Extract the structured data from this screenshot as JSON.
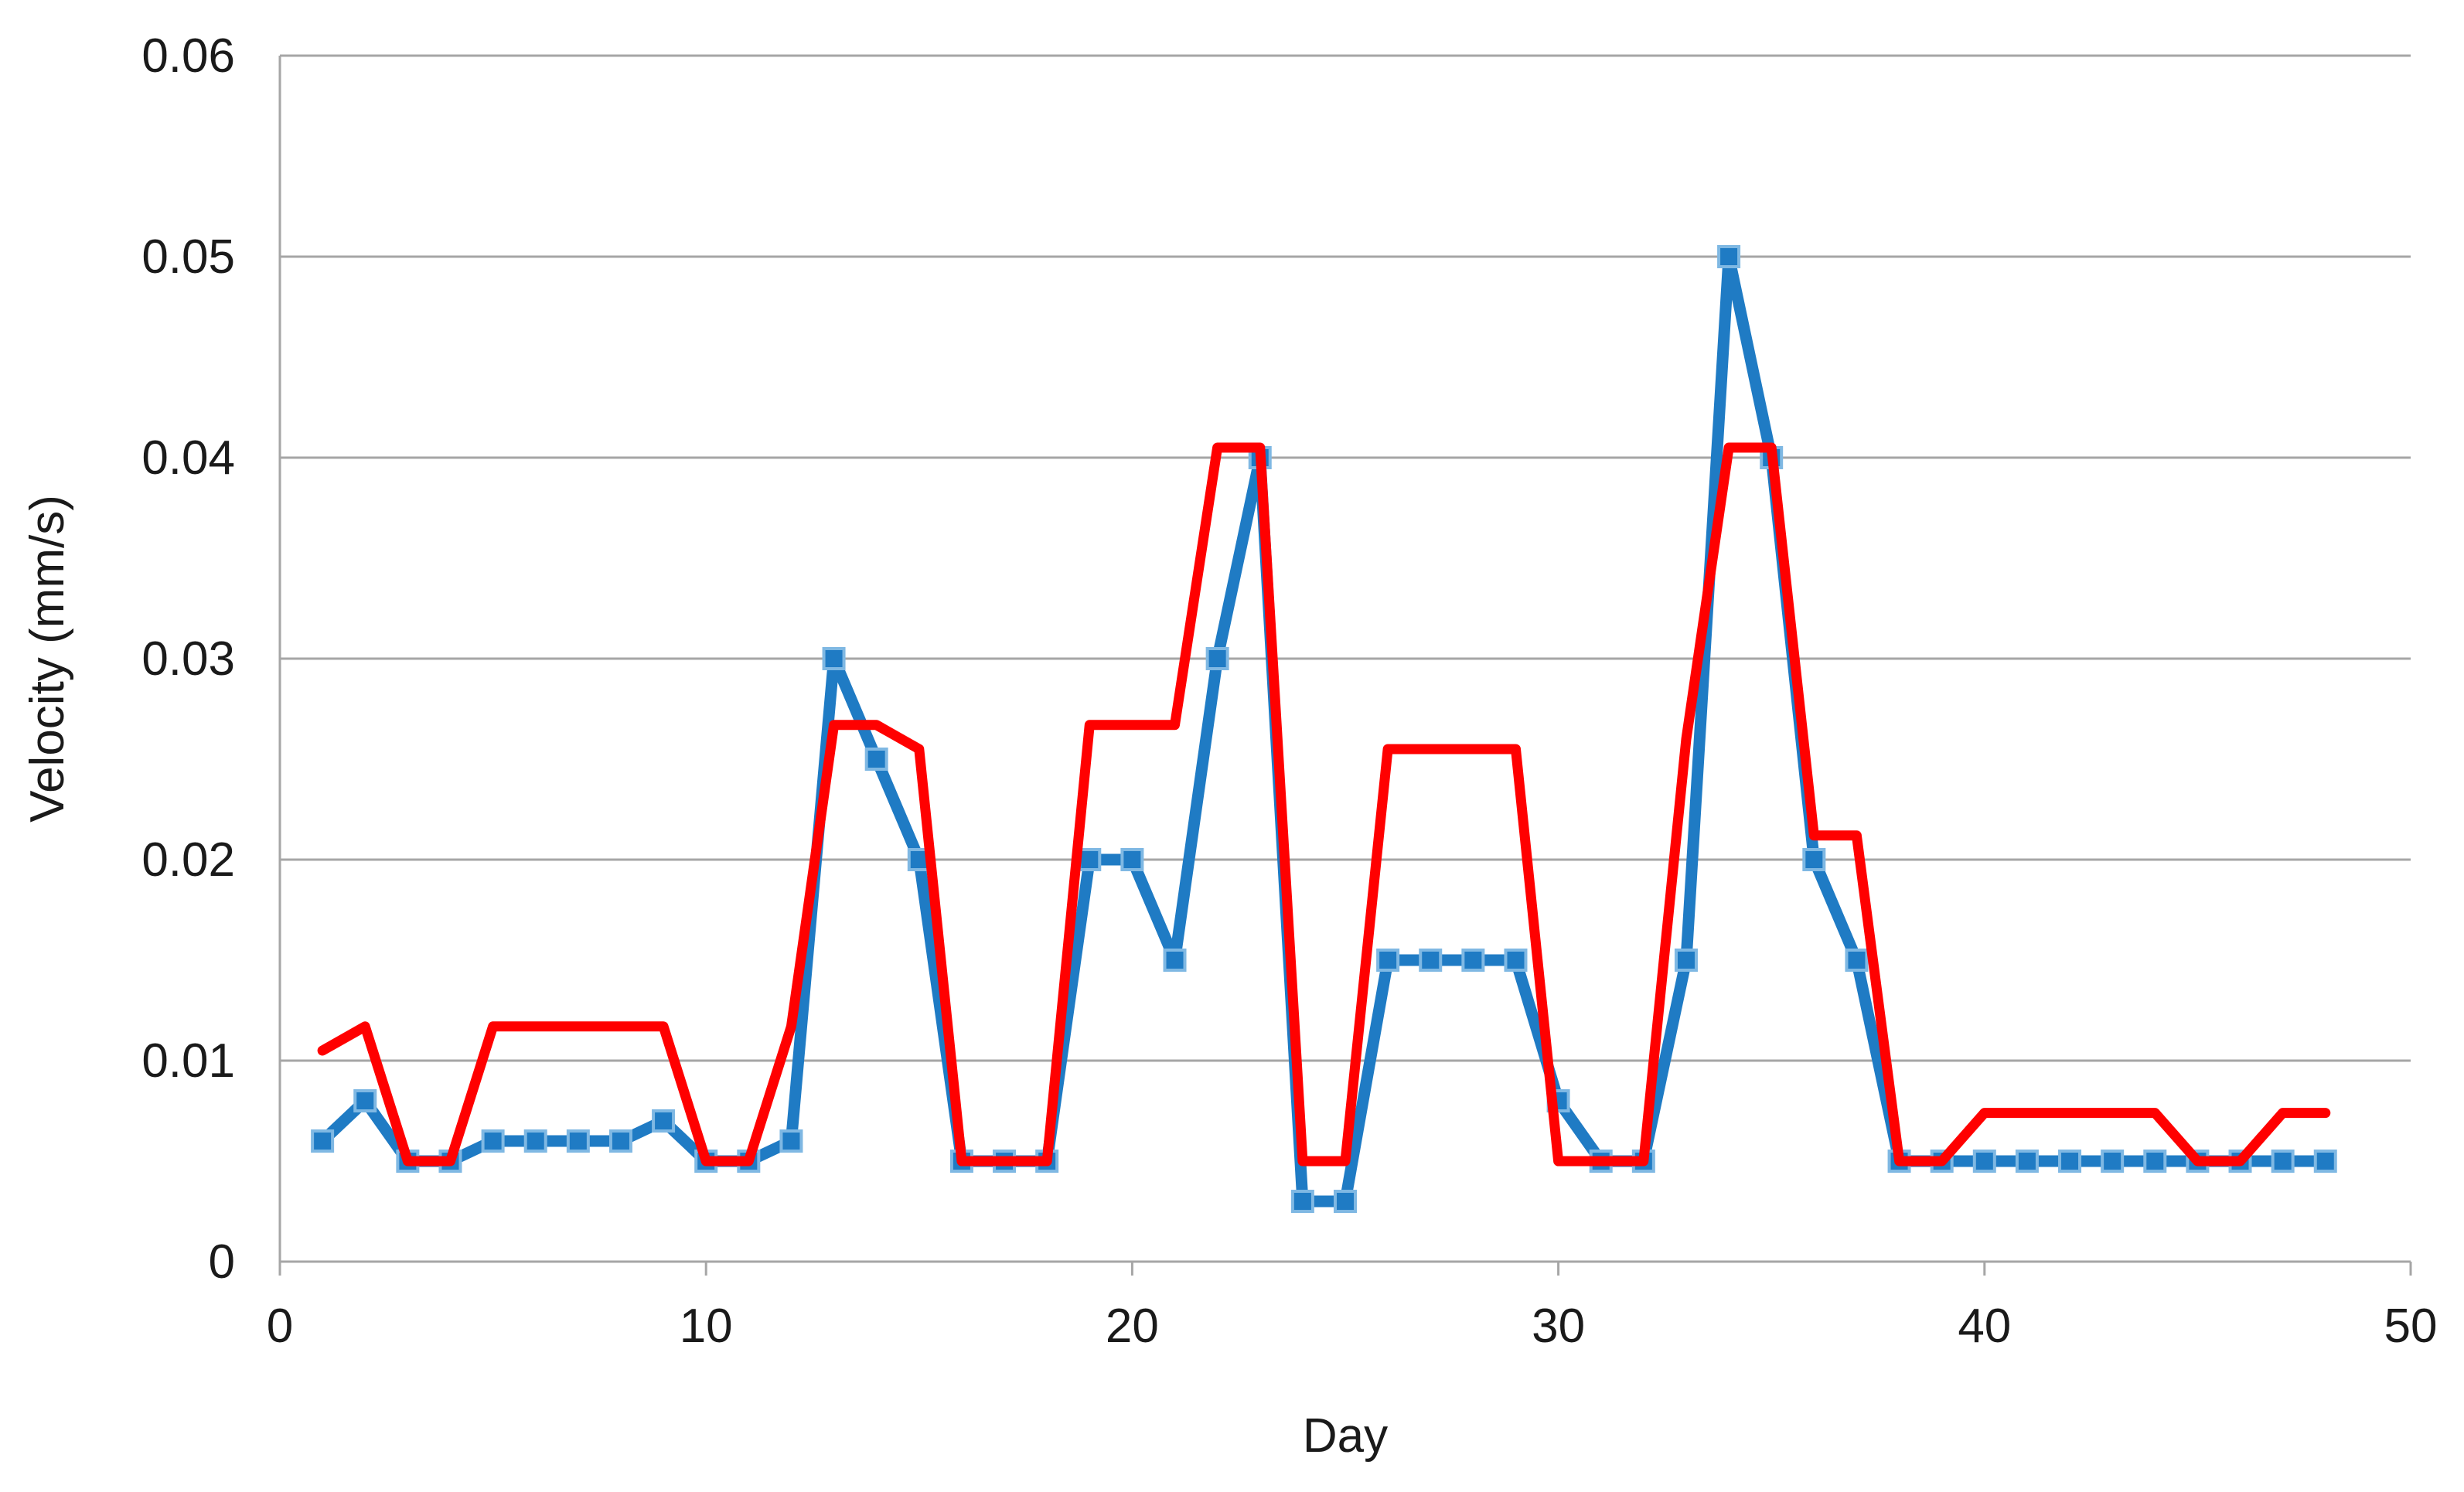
{
  "chart_data": {
    "type": "line",
    "title": "",
    "xlabel": "Day",
    "ylabel": "Velocity (mm/s)",
    "xlim": [
      0,
      50
    ],
    "ylim": [
      0,
      0.06
    ],
    "xticks": [
      "0",
      "10",
      "20",
      "30",
      "40",
      "50"
    ],
    "yticks": [
      "0",
      "0.01",
      "0.02",
      "0.03",
      "0.04",
      "0.05",
      "0.06"
    ],
    "grid": "horizontal",
    "legend": "none",
    "series": [
      {
        "color": "#1f7bc4",
        "marker": "square",
        "points": [
          [
            1,
            0.006
          ],
          [
            2,
            0.008
          ],
          [
            3,
            0.005
          ],
          [
            4,
            0.005
          ],
          [
            5,
            0.006
          ],
          [
            6,
            0.006
          ],
          [
            7,
            0.006
          ],
          [
            8,
            0.006
          ],
          [
            9,
            0.007
          ],
          [
            10,
            0.005
          ],
          [
            11,
            0.005
          ],
          [
            12,
            0.006
          ],
          [
            13,
            0.03
          ],
          [
            14,
            0.025
          ],
          [
            15,
            0.02
          ],
          [
            16,
            0.005
          ],
          [
            17,
            0.005
          ],
          [
            18,
            0.005
          ],
          [
            19,
            0.02
          ],
          [
            20,
            0.02
          ],
          [
            21,
            0.015
          ],
          [
            22,
            0.03
          ],
          [
            23,
            0.04
          ],
          [
            24,
            0.003
          ],
          [
            25,
            0.003
          ],
          [
            26,
            0.015
          ],
          [
            27,
            0.015
          ],
          [
            28,
            0.015
          ],
          [
            29,
            0.015
          ],
          [
            30,
            0.008
          ],
          [
            31,
            0.005
          ],
          [
            32,
            0.005
          ],
          [
            33,
            0.015
          ],
          [
            34,
            0.05
          ],
          [
            35,
            0.04
          ],
          [
            36,
            0.02
          ],
          [
            37,
            0.015
          ],
          [
            38,
            0.005
          ],
          [
            39,
            0.005
          ],
          [
            40,
            0.005
          ],
          [
            41,
            0.005
          ],
          [
            42,
            0.005
          ],
          [
            43,
            0.005
          ],
          [
            44,
            0.005
          ],
          [
            45,
            0.005
          ],
          [
            46,
            0.005
          ],
          [
            47,
            0.005
          ],
          [
            48,
            0.005
          ]
        ]
      },
      {
        "color": "#ff0000",
        "marker": "none",
        "points": [
          [
            1,
            0.0105
          ],
          [
            2,
            0.0117
          ],
          [
            3,
            0.005
          ],
          [
            4,
            0.005
          ],
          [
            5,
            0.0117
          ],
          [
            9,
            0.0117
          ],
          [
            10,
            0.005
          ],
          [
            11,
            0.005
          ],
          [
            12,
            0.0117
          ],
          [
            13,
            0.0267
          ],
          [
            14,
            0.0267
          ],
          [
            15,
            0.0255
          ],
          [
            16,
            0.005
          ],
          [
            18,
            0.005
          ],
          [
            19,
            0.0267
          ],
          [
            21,
            0.0267
          ],
          [
            22,
            0.0405
          ],
          [
            23,
            0.0405
          ],
          [
            24,
            0.005
          ],
          [
            25,
            0.005
          ],
          [
            26,
            0.0255
          ],
          [
            29,
            0.0255
          ],
          [
            30,
            0.005
          ],
          [
            32,
            0.005
          ],
          [
            33,
            0.026
          ],
          [
            34,
            0.0405
          ],
          [
            35,
            0.0405
          ],
          [
            36,
            0.0212
          ],
          [
            37,
            0.0212
          ],
          [
            38,
            0.005
          ],
          [
            39,
            0.005
          ],
          [
            40,
            0.0074
          ],
          [
            44,
            0.0074
          ],
          [
            45,
            0.005
          ],
          [
            46,
            0.005
          ],
          [
            47,
            0.0074
          ],
          [
            48,
            0.0074
          ]
        ]
      }
    ]
  }
}
